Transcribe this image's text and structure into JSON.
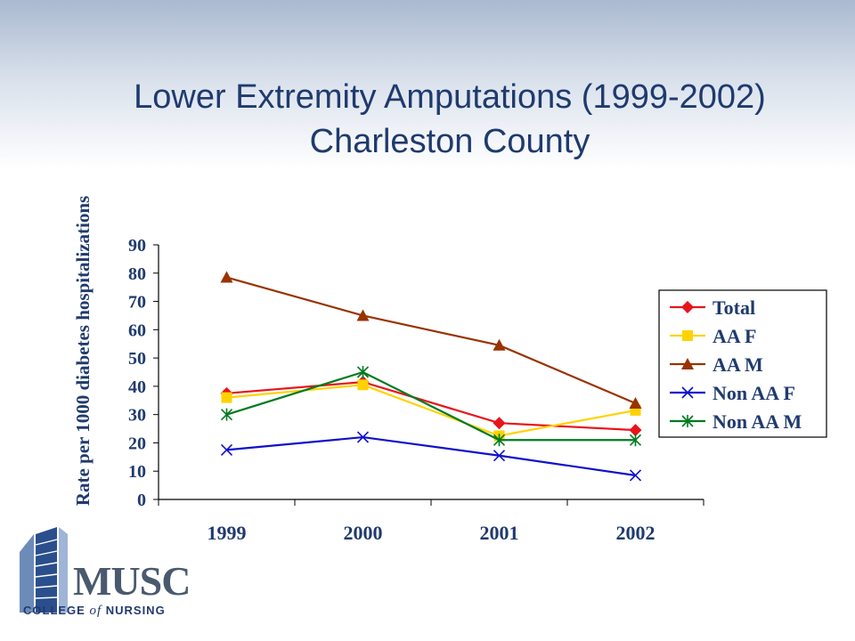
{
  "slide": {
    "title_line1": "Lower Extremity Amputations (1999-2002)",
    "title_line2": "Charleston County"
  },
  "colors": {
    "title": "#1f3a6e",
    "total": "#e8141b",
    "aa_f": "#ffd200",
    "aa_m": "#993300",
    "non_aa_f": "#1010cc",
    "non_aa_m": "#007a1f"
  },
  "chart_data": {
    "type": "line",
    "title": "",
    "xlabel": "",
    "ylabel": "Rate per 1000 diabetes hospitalizations",
    "categories": [
      "1999",
      "2000",
      "2001",
      "2002"
    ],
    "ylim": [
      0,
      90
    ],
    "yticks": [
      "0",
      "10",
      "20",
      "30",
      "40",
      "50",
      "60",
      "70",
      "80",
      "90"
    ],
    "grid": false,
    "legend_position": "right",
    "series": [
      {
        "name": "Total",
        "marker": "diamond",
        "color": "#e8141b",
        "values": [
          37.5,
          41.5,
          27,
          24.5
        ]
      },
      {
        "name": "AA F",
        "marker": "square",
        "color": "#ffd200",
        "values": [
          36,
          40.5,
          22.5,
          31.5
        ]
      },
      {
        "name": "AA M",
        "marker": "triangle",
        "color": "#993300",
        "values": [
          78.5,
          65,
          54.5,
          34
        ]
      },
      {
        "name": "Non AA F",
        "marker": "x",
        "color": "#1010cc",
        "values": [
          17.5,
          22,
          15.5,
          8.5
        ]
      },
      {
        "name": "Non AA M",
        "marker": "asterisk",
        "color": "#007a1f",
        "values": [
          30,
          45,
          21,
          21
        ]
      }
    ]
  },
  "logo": {
    "name": "MUSC",
    "subtitle_pre": "COLLEGE ",
    "subtitle_of": "of",
    "subtitle_post": " NURSING"
  }
}
